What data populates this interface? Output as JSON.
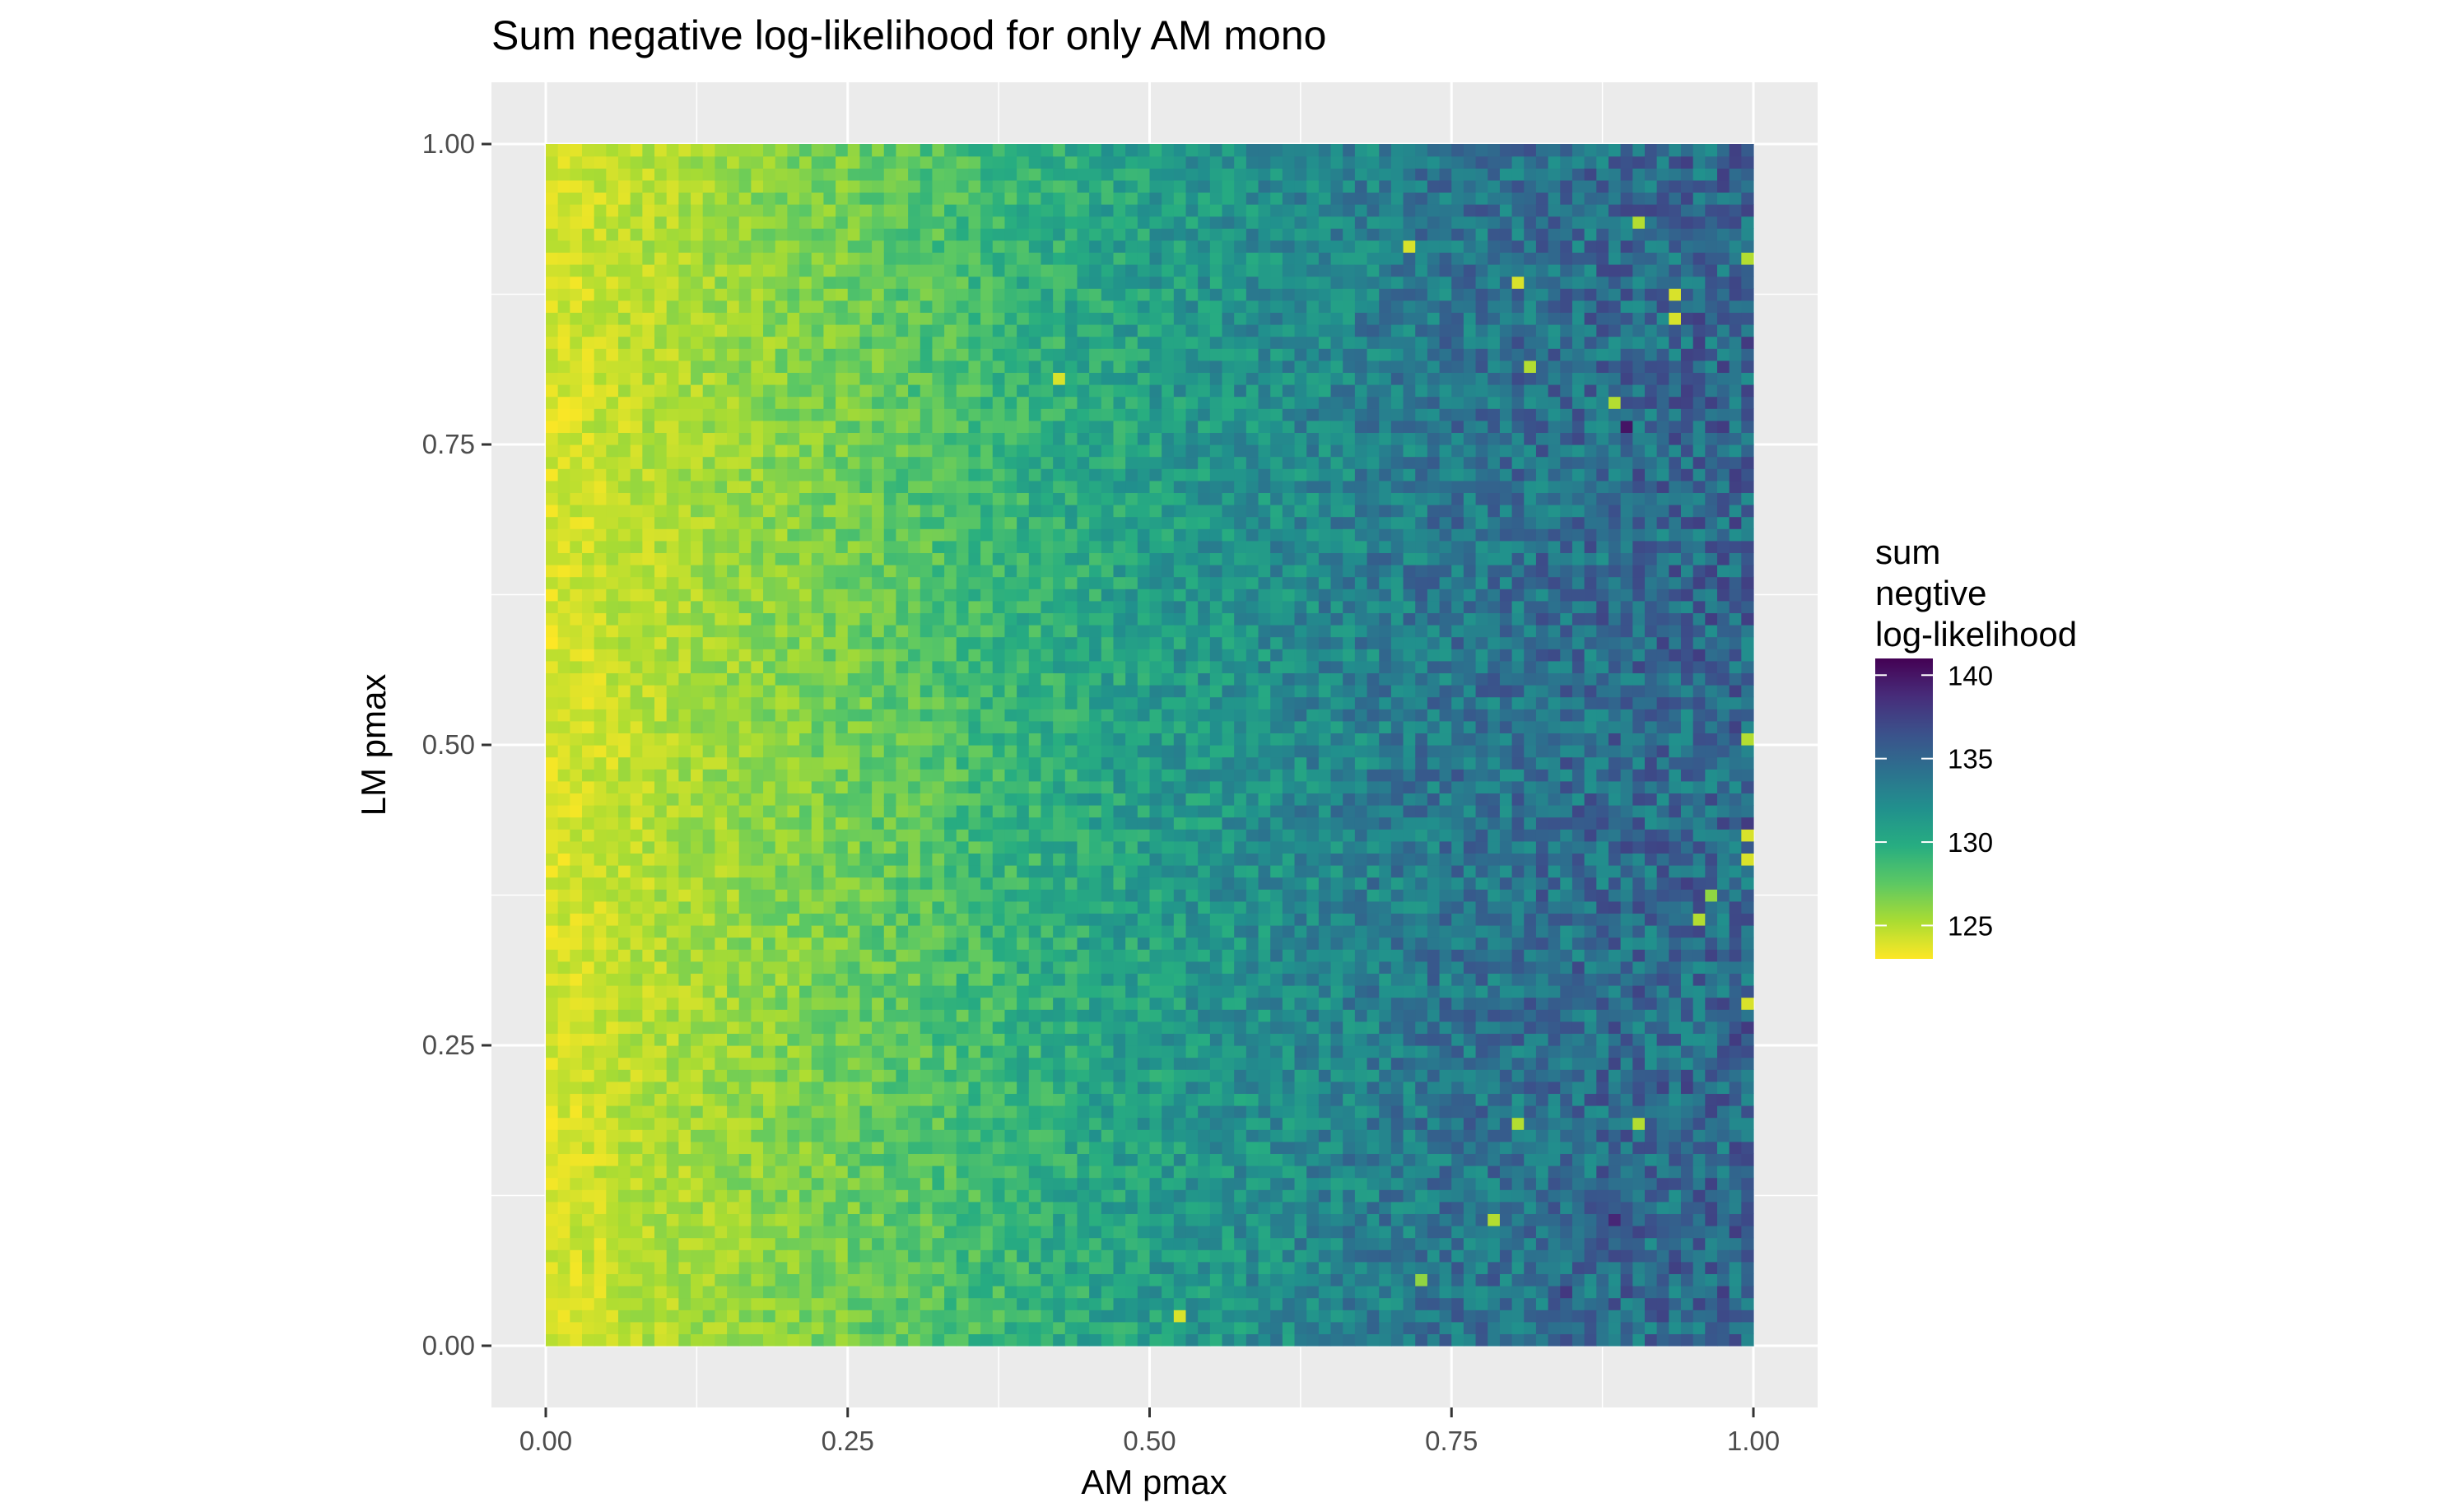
{
  "chart_data": {
    "type": "heatmap",
    "title": "Sum negative log-likelihood for only AM mono",
    "xlabel": "AM pmax",
    "ylabel": "LM pmax",
    "xlim": [
      0.0,
      1.0
    ],
    "ylim": [
      0.0,
      1.0
    ],
    "x_ticks": [
      "0.00",
      "0.25",
      "0.50",
      "0.75",
      "1.00"
    ],
    "y_ticks": [
      "0.00",
      "0.25",
      "0.50",
      "0.75",
      "1.00"
    ],
    "grid": true,
    "panel_background": "#ebebeb",
    "colormap": "viridis",
    "color_reversed": true,
    "value_range": [
      123,
      141
    ],
    "legend": {
      "title_lines": [
        "sum",
        "negtive",
        "log-likelihood"
      ],
      "ticks": [
        "140",
        "135",
        "130",
        "125"
      ],
      "placement": "right"
    },
    "grid_resolution": {
      "nx": 100,
      "ny": 100
    },
    "x_step": 0.01,
    "y_step": 0.01,
    "trend": "value rises from about 124 at AM pmax 0 to about 135 at AM pmax 1, with cell-to-cell noise of about 2, roughly constant along LM pmax",
    "approximate_profile_along_x": [
      {
        "x": 0.0,
        "value": 124
      },
      {
        "x": 0.25,
        "value": 127
      },
      {
        "x": 0.5,
        "value": 131
      },
      {
        "x": 0.75,
        "value": 134
      },
      {
        "x": 1.0,
        "value": 135
      }
    ],
    "highlighted_cells": [
      {
        "x": 0.42,
        "y": 0.8,
        "value": 124
      },
      {
        "x": 0.71,
        "y": 0.91,
        "value": 124
      },
      {
        "x": 0.8,
        "y": 0.88,
        "value": 124
      },
      {
        "x": 0.81,
        "y": 0.81,
        "value": 125
      },
      {
        "x": 0.88,
        "y": 0.78,
        "value": 125
      },
      {
        "x": 0.89,
        "y": 0.76,
        "value": 140
      },
      {
        "x": 0.93,
        "y": 0.87,
        "value": 124
      },
      {
        "x": 0.93,
        "y": 0.85,
        "value": 124
      },
      {
        "x": 0.9,
        "y": 0.93,
        "value": 125
      },
      {
        "x": 0.97,
        "y": 0.73,
        "value": 136
      },
      {
        "x": 0.99,
        "y": 0.42,
        "value": 124
      },
      {
        "x": 0.99,
        "y": 0.4,
        "value": 124
      },
      {
        "x": 0.96,
        "y": 0.37,
        "value": 126
      },
      {
        "x": 0.95,
        "y": 0.35,
        "value": 125
      },
      {
        "x": 0.99,
        "y": 0.5,
        "value": 125
      },
      {
        "x": 0.99,
        "y": 0.9,
        "value": 125
      },
      {
        "x": 0.99,
        "y": 0.28,
        "value": 124
      },
      {
        "x": 0.88,
        "y": 0.1,
        "value": 139
      },
      {
        "x": 0.84,
        "y": 0.04,
        "value": 138
      },
      {
        "x": 0.8,
        "y": 0.18,
        "value": 125
      },
      {
        "x": 0.72,
        "y": 0.05,
        "value": 126
      },
      {
        "x": 0.52,
        "y": 0.02,
        "value": 124
      },
      {
        "x": 0.78,
        "y": 0.1,
        "value": 125
      },
      {
        "x": 0.9,
        "y": 0.18,
        "value": 125
      }
    ]
  }
}
